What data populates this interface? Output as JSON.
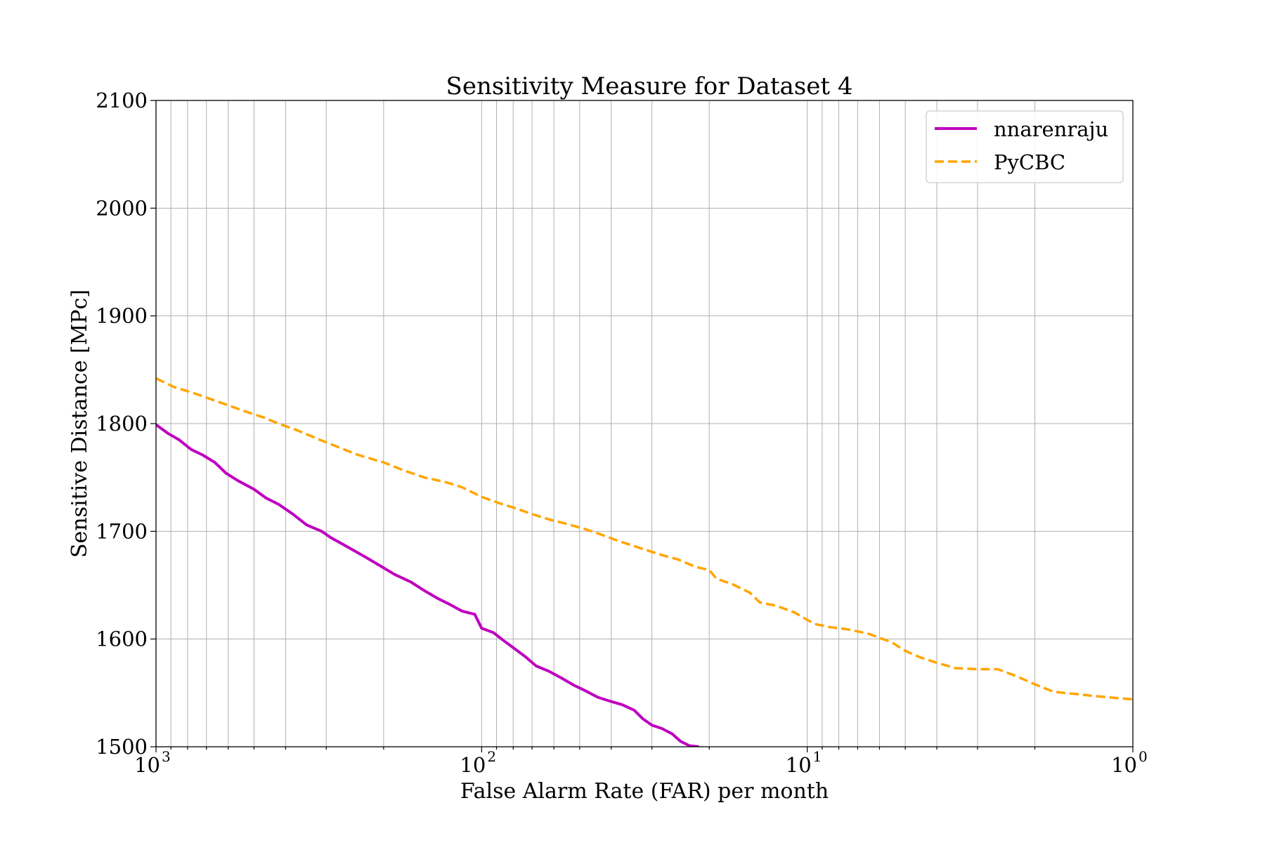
{
  "chart_data": {
    "type": "line",
    "title": "Sensitivity Measure for Dataset 4",
    "xlabel": "False Alarm Rate (FAR) per month",
    "ylabel": "Sensitive Distance [MPc]",
    "x_scale": "log",
    "x_reversed": true,
    "xlim": [
      1000,
      1
    ],
    "ylim": [
      1500,
      2100
    ],
    "x_ticks": [
      {
        "value": 1000,
        "base": "10",
        "exp": "3"
      },
      {
        "value": 100,
        "base": "10",
        "exp": "2"
      },
      {
        "value": 10,
        "base": "10",
        "exp": "1"
      },
      {
        "value": 1,
        "base": "10",
        "exp": "0"
      }
    ],
    "y_ticks": [
      {
        "value": 1500,
        "label": "1500"
      },
      {
        "value": 1600,
        "label": "1600"
      },
      {
        "value": 1700,
        "label": "1700"
      },
      {
        "value": 1800,
        "label": "1800"
      },
      {
        "value": 1900,
        "label": "1900"
      },
      {
        "value": 2000,
        "label": "2000"
      },
      {
        "value": 2100,
        "label": "2100"
      }
    ],
    "grid": true,
    "legend_position": "top-right",
    "series": [
      {
        "name": "nnarenraju",
        "color": "#bf00bf",
        "dash": "solid",
        "points": [
          [
            1000,
            1799
          ],
          [
            920,
            1791
          ],
          [
            850,
            1785
          ],
          [
            780,
            1776
          ],
          [
            720,
            1771
          ],
          [
            660,
            1764
          ],
          [
            610,
            1754
          ],
          [
            560,
            1747
          ],
          [
            500,
            1739
          ],
          [
            460,
            1731
          ],
          [
            420,
            1725
          ],
          [
            380,
            1716
          ],
          [
            345,
            1706
          ],
          [
            310,
            1700
          ],
          [
            290,
            1694
          ],
          [
            260,
            1686
          ],
          [
            230,
            1677
          ],
          [
            205,
            1668
          ],
          [
            185,
            1660
          ],
          [
            165,
            1653
          ],
          [
            150,
            1645
          ],
          [
            137,
            1638
          ],
          [
            125,
            1632
          ],
          [
            115,
            1626
          ],
          [
            105,
            1623
          ],
          [
            100,
            1610
          ],
          [
            92,
            1606
          ],
          [
            86,
            1599
          ],
          [
            80,
            1592
          ],
          [
            73,
            1583
          ],
          [
            68,
            1575
          ],
          [
            62,
            1570
          ],
          [
            57,
            1564
          ],
          [
            52,
            1557
          ],
          [
            48,
            1552
          ],
          [
            44,
            1546
          ],
          [
            40,
            1542
          ],
          [
            37,
            1539
          ],
          [
            34,
            1534
          ],
          [
            32,
            1526
          ],
          [
            30,
            1520
          ],
          [
            28,
            1517
          ],
          [
            26,
            1512
          ],
          [
            24.5,
            1505
          ],
          [
            23,
            1501
          ],
          [
            21.5,
            1500
          ]
        ]
      },
      {
        "name": "PyCBC",
        "color": "#ffa500",
        "dash": "dashed",
        "points": [
          [
            1000,
            1842
          ],
          [
            880,
            1834
          ],
          [
            760,
            1828
          ],
          [
            640,
            1820
          ],
          [
            540,
            1812
          ],
          [
            470,
            1806
          ],
          [
            420,
            1800
          ],
          [
            370,
            1794
          ],
          [
            320,
            1786
          ],
          [
            280,
            1779
          ],
          [
            240,
            1771
          ],
          [
            200,
            1764
          ],
          [
            175,
            1757
          ],
          [
            150,
            1750
          ],
          [
            130,
            1746
          ],
          [
            115,
            1741
          ],
          [
            100,
            1732
          ],
          [
            88,
            1726
          ],
          [
            78,
            1721
          ],
          [
            70,
            1716
          ],
          [
            62,
            1711
          ],
          [
            55,
            1707
          ],
          [
            48,
            1702
          ],
          [
            43,
            1697
          ],
          [
            38,
            1691
          ],
          [
            33,
            1685
          ],
          [
            28,
            1678
          ],
          [
            25,
            1674
          ],
          [
            22,
            1667
          ],
          [
            20,
            1664
          ],
          [
            19,
            1656
          ],
          [
            17,
            1651
          ],
          [
            15,
            1643
          ],
          [
            14,
            1634
          ],
          [
            12.5,
            1631
          ],
          [
            11,
            1625
          ],
          [
            9.5,
            1614
          ],
          [
            8.5,
            1611
          ],
          [
            7.5,
            1609
          ],
          [
            6.5,
            1605
          ],
          [
            5.5,
            1597
          ],
          [
            5,
            1589
          ],
          [
            4.5,
            1583
          ],
          [
            4,
            1578
          ],
          [
            3.5,
            1573
          ],
          [
            3,
            1572
          ],
          [
            2.6,
            1572
          ],
          [
            2.3,
            1566
          ],
          [
            2,
            1558
          ],
          [
            1.75,
            1551
          ],
          [
            1.5,
            1549
          ],
          [
            1.3,
            1547
          ],
          [
            1.1,
            1545
          ],
          [
            1,
            1544
          ]
        ]
      }
    ]
  }
}
